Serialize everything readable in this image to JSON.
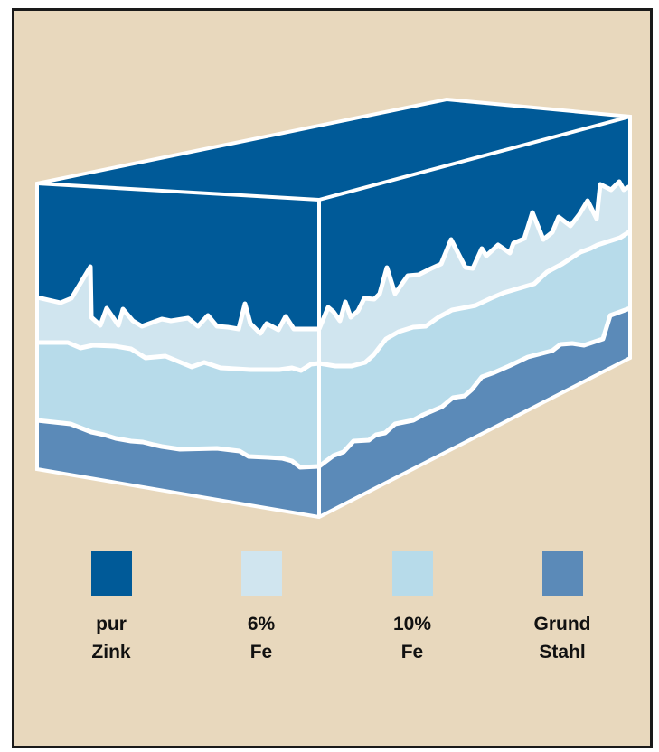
{
  "colors": {
    "background": "#e8d8bd",
    "border": "#1a1a1a",
    "outline": "#ffffff"
  },
  "layers": [
    {
      "key": "pur_zink",
      "color": "#005a98",
      "label_line1": "pur",
      "label_line2": "Zink"
    },
    {
      "key": "fe6",
      "color": "#d0e5ef",
      "label_line1": "6%",
      "label_line2": "Fe"
    },
    {
      "key": "fe10",
      "color": "#b7dbea",
      "label_line1": "10%",
      "label_line2": "Fe"
    },
    {
      "key": "grund_stahl",
      "color": "#5b8ab8",
      "label_line1": "Grund",
      "label_line2": "Stahl"
    }
  ]
}
